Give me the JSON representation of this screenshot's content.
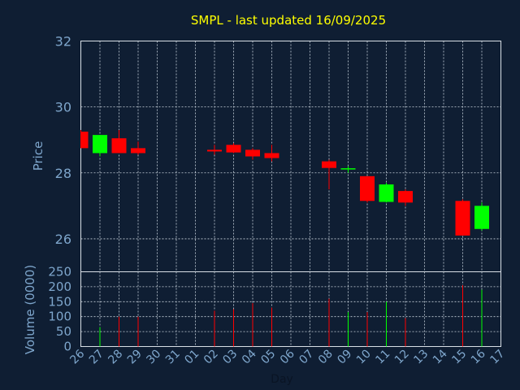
{
  "colors": {
    "background": "#0f1e33",
    "up": "#00ff00",
    "down": "#ff0000",
    "title": "#ffff00",
    "axis_text": "#7ea6cc"
  },
  "chart_data": {
    "type": "candlestick",
    "title": "SMPL - last updated 16/09/2025",
    "xlabel": "Day",
    "price_panel": {
      "ylabel": "Price",
      "ylim": [
        25,
        32
      ],
      "yticks": [
        "32",
        "30",
        "28",
        "26"
      ],
      "ytick_values": [
        32,
        30,
        28,
        26
      ],
      "grid": true
    },
    "volume_panel": {
      "ylabel": "Volume (0000)",
      "ylim": [
        0,
        250
      ],
      "yticks": [
        "250",
        "200",
        "150",
        "100",
        "50",
        "0"
      ],
      "ytick_values": [
        250,
        200,
        150,
        100,
        50,
        0
      ],
      "grid": true
    },
    "x_ticks": [
      "26",
      "27",
      "28",
      "29",
      "30",
      "31",
      "01",
      "02",
      "03",
      "04",
      "05",
      "06",
      "07",
      "08",
      "09",
      "10",
      "11",
      "12",
      "13",
      "14",
      "15",
      "16",
      "17"
    ],
    "candles": [
      {
        "day": "26",
        "open": 29.25,
        "high": 29.3,
        "low": 28.75,
        "close": 28.75,
        "volume": 0
      },
      {
        "day": "27",
        "open": 28.6,
        "high": 29.15,
        "low": 28.5,
        "close": 29.15,
        "volume": 65
      },
      {
        "day": "28",
        "open": 29.05,
        "high": 29.3,
        "low": 28.6,
        "close": 28.6,
        "volume": 100
      },
      {
        "day": "29",
        "open": 28.75,
        "high": 28.95,
        "low": 28.55,
        "close": 28.6,
        "volume": 100
      },
      {
        "day": "02",
        "open": 28.7,
        "high": 28.85,
        "low": 28.55,
        "close": 28.65,
        "volume": 120
      },
      {
        "day": "03",
        "open": 28.85,
        "high": 28.9,
        "low": 28.6,
        "close": 28.62,
        "volume": 125
      },
      {
        "day": "04",
        "open": 28.7,
        "high": 28.75,
        "low": 28.4,
        "close": 28.5,
        "volume": 145
      },
      {
        "day": "05",
        "open": 28.6,
        "high": 28.85,
        "low": 28.35,
        "close": 28.45,
        "volume": 130
      },
      {
        "day": "08",
        "open": 28.35,
        "high": 28.4,
        "low": 27.5,
        "close": 28.15,
        "volume": 160
      },
      {
        "day": "09",
        "open": 28.12,
        "high": 28.2,
        "low": 28.0,
        "close": 28.14,
        "volume": 115
      },
      {
        "day": "10",
        "open": 27.9,
        "high": 27.9,
        "low": 27.1,
        "close": 27.15,
        "volume": 115
      },
      {
        "day": "11",
        "open": 27.12,
        "high": 27.7,
        "low": 27.1,
        "close": 27.65,
        "volume": 150
      },
      {
        "day": "12",
        "open": 27.45,
        "high": 27.5,
        "low": 27.0,
        "close": 27.1,
        "volume": 95
      },
      {
        "day": "15",
        "open": 27.15,
        "high": 27.2,
        "low": 26.1,
        "close": 26.1,
        "volume": 205
      },
      {
        "day": "16",
        "open": 26.3,
        "high": 27.1,
        "low": 26.25,
        "close": 27.0,
        "volume": 190
      }
    ]
  }
}
